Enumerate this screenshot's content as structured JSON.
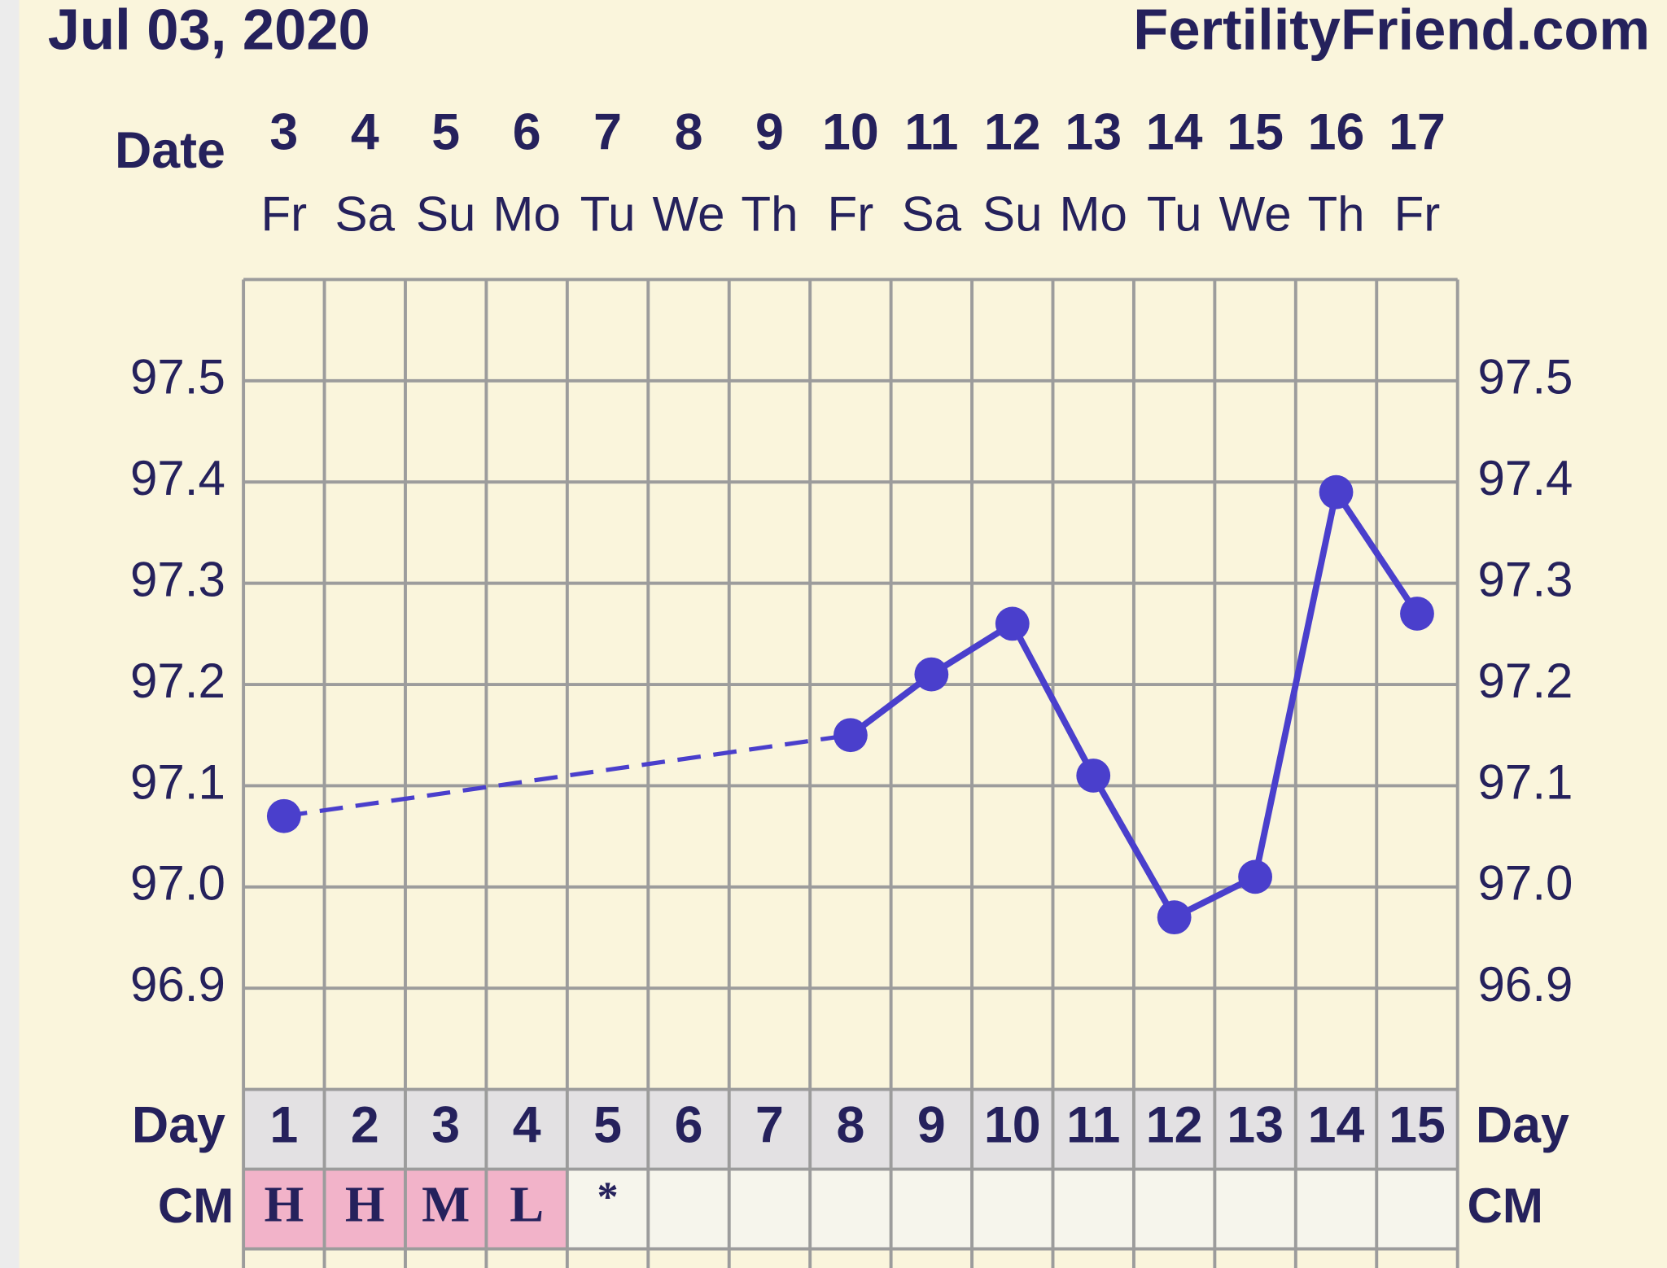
{
  "chart_data": {
    "type": "line",
    "title": "Jul 03, 2020",
    "source": "FertilityFriend.com",
    "date_label": "Date",
    "day_label": "Day",
    "cm_label": "CM",
    "dates": [
      3,
      4,
      5,
      6,
      7,
      8,
      9,
      10,
      11,
      12,
      13,
      14,
      15,
      16,
      17
    ],
    "weekdays": [
      "Fr",
      "Sa",
      "Su",
      "Mo",
      "Tu",
      "We",
      "Th",
      "Fr",
      "Sa",
      "Su",
      "Mo",
      "Tu",
      "We",
      "Th",
      "Fr"
    ],
    "categories": [
      1,
      2,
      3,
      4,
      5,
      6,
      7,
      8,
      9,
      10,
      11,
      12,
      13,
      14,
      15
    ],
    "cm": [
      "H",
      "H",
      "M",
      "L",
      "*",
      null,
      null,
      null,
      null,
      null,
      null,
      null,
      null,
      null,
      null
    ],
    "cm_color": "#f2b3c9",
    "series": [
      {
        "color": "#4a3fcc",
        "values": [
          97.07,
          null,
          null,
          null,
          null,
          null,
          null,
          97.15,
          97.21,
          97.26,
          97.11,
          96.97,
          97.01,
          97.39,
          97.27
        ]
      }
    ],
    "ylim": [
      96.8,
      97.6
    ],
    "yticks": [
      96.9,
      {
        "value": 97,
        "label": "97.0"
      },
      97.1,
      97.2,
      97.3,
      97.4,
      97.5
    ],
    "grid": true
  }
}
